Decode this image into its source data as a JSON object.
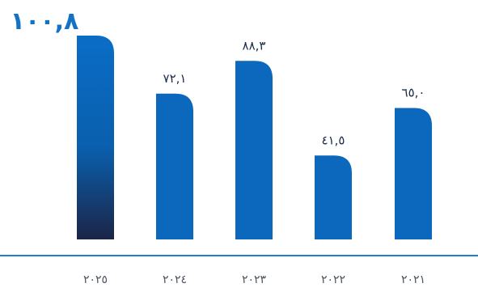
{
  "colors": {
    "bar": "#0c68bd",
    "bar_highlight_top": "#0a6dc6",
    "bar_highlight_bottom": "#1b2548",
    "baseline": "#1f7ed0",
    "highlight_label": "#1472c4",
    "label": "#1a2a4a",
    "tick_label": "#4a5560"
  },
  "chart_data": {
    "type": "bar",
    "categories": [
      "٢٠٢٥",
      "٢٠٢٤",
      "٢٠٢٣",
      "٢٠٢٢",
      "٢٠٢١"
    ],
    "values": [
      100.8,
      72.1,
      88.3,
      41.5,
      65.0
    ],
    "value_labels": [
      "١٠٠,٨",
      "٧٢,١",
      "٨٨,٣",
      "٤١,٥",
      "٦٥,٠"
    ],
    "highlight_index": 0,
    "ylim": [
      0,
      100.8
    ],
    "grid": false,
    "legend": "none",
    "axis_direction": "right-to-left"
  }
}
